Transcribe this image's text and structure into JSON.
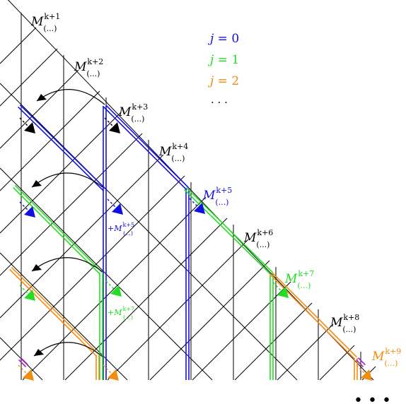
{
  "colors": {
    "grid": "#000000",
    "j0": "#1010e0",
    "j1": "#22dd22",
    "j2": "#f28c0f",
    "extra": "#a020c0"
  },
  "legend": [
    {
      "id": "j0",
      "lhs": "j",
      "eq": " = ",
      "rhs": "0"
    },
    {
      "id": "j1",
      "lhs": "j",
      "eq": " = ",
      "rhs": "1"
    },
    {
      "id": "j2",
      "lhs": "j",
      "eq": " = ",
      "rhs": "2"
    },
    {
      "id": "more",
      "text": "· · ·"
    }
  ],
  "labels": [
    {
      "id": "k1",
      "base": "M",
      "sup": "k+1",
      "sub": "(...)",
      "color": "grid"
    },
    {
      "id": "k2",
      "base": "M",
      "sup": "k+2",
      "sub": "(...)",
      "color": "grid"
    },
    {
      "id": "k3",
      "base": "M",
      "sup": "k+3",
      "sub": "(...)",
      "color": "grid"
    },
    {
      "id": "k4",
      "base": "M",
      "sup": "k+4",
      "sub": "(...)",
      "color": "grid"
    },
    {
      "id": "k5",
      "base": "M",
      "sup": "k+5",
      "sub": "(...)",
      "color": "j0"
    },
    {
      "id": "k6",
      "base": "M",
      "sup": "k+6",
      "sub": "(...)",
      "color": "grid"
    },
    {
      "id": "k7",
      "base": "M",
      "sup": "k+7",
      "sub": "(...)",
      "color": "j1"
    },
    {
      "id": "k8",
      "base": "M",
      "sup": "k+8",
      "sub": "(...)",
      "color": "grid"
    },
    {
      "id": "k9",
      "base": "M",
      "sup": "k+9",
      "sub": "(...)",
      "color": "j2"
    }
  ],
  "side_labels": [
    {
      "id": "s5",
      "prefix": "+",
      "base": "M",
      "sup": "k+5",
      "sub": "(...)",
      "color": "j0"
    },
    {
      "id": "s7",
      "prefix": "+",
      "base": "M",
      "sup": "k+7",
      "sub": "(...)",
      "color": "j1"
    }
  ],
  "continuation": "• • •"
}
